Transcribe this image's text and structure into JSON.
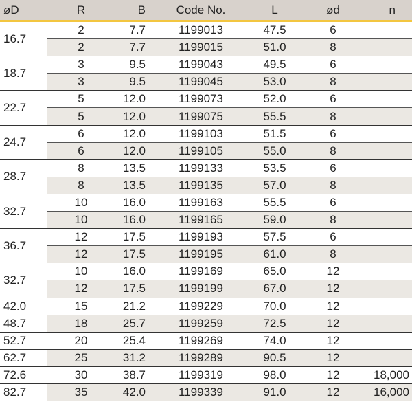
{
  "headers": [
    "øD",
    "R",
    "B",
    "Code No.",
    "L",
    "ød",
    "n"
  ],
  "groups": [
    {
      "D": "16.7",
      "rows": [
        [
          "2",
          "7.7",
          "1199013",
          "47.5",
          "6",
          ""
        ],
        [
          "2",
          "7.7",
          "1199015",
          "51.0",
          "8",
          ""
        ]
      ]
    },
    {
      "D": "18.7",
      "rows": [
        [
          "3",
          "9.5",
          "1199043",
          "49.5",
          "6",
          ""
        ],
        [
          "3",
          "9.5",
          "1199045",
          "53.0",
          "8",
          ""
        ]
      ]
    },
    {
      "D": "22.7",
      "rows": [
        [
          "5",
          "12.0",
          "1199073",
          "52.0",
          "6",
          ""
        ],
        [
          "5",
          "12.0",
          "1199075",
          "55.5",
          "8",
          ""
        ]
      ]
    },
    {
      "D": "24.7",
      "rows": [
        [
          "6",
          "12.0",
          "1199103",
          "51.5",
          "6",
          ""
        ],
        [
          "6",
          "12.0",
          "1199105",
          "55.0",
          "8",
          ""
        ]
      ]
    },
    {
      "D": "28.7",
      "rows": [
        [
          "8",
          "13.5",
          "1199133",
          "53.5",
          "6",
          ""
        ],
        [
          "8",
          "13.5",
          "1199135",
          "57.0",
          "8",
          ""
        ]
      ]
    },
    {
      "D": "32.7",
      "rows": [
        [
          "10",
          "16.0",
          "1199163",
          "55.5",
          "6",
          ""
        ],
        [
          "10",
          "16.0",
          "1199165",
          "59.0",
          "8",
          ""
        ]
      ]
    },
    {
      "D": "36.7",
      "rows": [
        [
          "12",
          "17.5",
          "1199193",
          "57.5",
          "6",
          ""
        ],
        [
          "12",
          "17.5",
          "1199195",
          "61.0",
          "8",
          ""
        ]
      ]
    },
    {
      "D": "32.7",
      "rows": [
        [
          "10",
          "16.0",
          "1199169",
          "65.0",
          "12",
          ""
        ],
        [
          "12",
          "17.5",
          "1199199",
          "67.0",
          "12",
          ""
        ]
      ]
    },
    {
      "D": "42.0",
      "rows": [
        [
          "15",
          "21.2",
          "1199229",
          "70.0",
          "12",
          ""
        ]
      ]
    },
    {
      "D": "48.7",
      "rows": [
        [
          "18",
          "25.7",
          "1199259",
          "72.5",
          "12",
          ""
        ]
      ]
    },
    {
      "D": "52.7",
      "rows": [
        [
          "20",
          "25.4",
          "1199269",
          "74.0",
          "12",
          ""
        ]
      ]
    },
    {
      "D": "62.7",
      "rows": [
        [
          "25",
          "31.2",
          "1199289",
          "90.5",
          "12",
          ""
        ]
      ]
    },
    {
      "D": "72.6",
      "rows": [
        [
          "30",
          "38.7",
          "1199319",
          "98.0",
          "12",
          "18,000"
        ]
      ]
    },
    {
      "D": "82.7",
      "rows": [
        [
          "35",
          "42.0",
          "1199339",
          "91.0",
          "12",
          "16,000"
        ]
      ]
    }
  ],
  "colors": {
    "header_bg": "#d8d2cc",
    "header_rule": "#f3c640",
    "shade": "#ebe8e3"
  }
}
